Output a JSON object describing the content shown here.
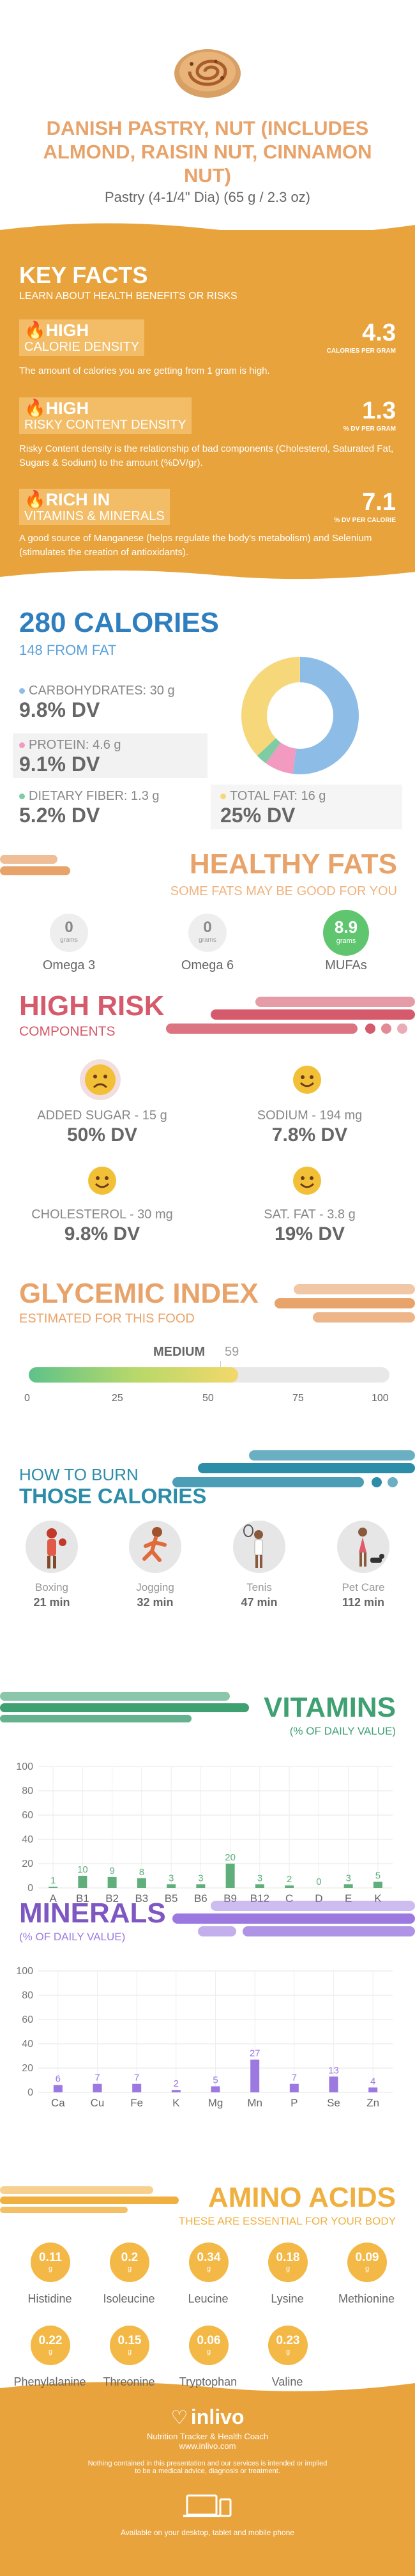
{
  "header": {
    "title": "DANISH PASTRY, NUT (INCLUDES ALMOND, RAISIN NUT, CINNAMON NUT)",
    "serving": "Pastry (4-1/4\" Dia) (65 g / 2.3 oz)"
  },
  "key_facts": {
    "title": "KEY FACTS",
    "subtitle": "LEARN ABOUT HEALTH BENEFITS OR RISKS",
    "items": [
      {
        "level": "HIGH",
        "name": "CALORIE DENSITY",
        "value": "4.3",
        "unit": "CALORIES PER GRAM",
        "desc": "The amount of calories you are getting from 1 gram is high."
      },
      {
        "level": "HIGH",
        "name": "RISKY CONTENT DENSITY",
        "value": "1.3",
        "unit": "% DV PER GRAM",
        "desc": "Risky Content density is the relationship of bad components (Cholesterol, Saturated Fat, Sugars & Sodium) to the amount (%DV/gr)."
      },
      {
        "level": "RICH  IN",
        "name": "VITAMINS & MINERALS",
        "value": "7.1",
        "unit": "% DV PER CALORIE",
        "desc": "A good source of Manganese (helps regulate the body's metabolism) and Selenium (stimulates the creation of antioxidants)."
      }
    ]
  },
  "calories": {
    "title": "280 CALORIES",
    "from_fat": "148 FROM FAT",
    "nutrients": [
      {
        "label": "CARBOHYDRATES: 30 g",
        "dv": "9.8% DV",
        "color": "#8dbde6"
      },
      {
        "label": "PROTEIN: 4.6 g",
        "dv": "9.1% DV",
        "color": "#f29ac0"
      },
      {
        "label": "DIETARY FIBER: 1.3 g",
        "dv": "5.2% DV",
        "color": "#7fcba4"
      },
      {
        "label": "TOTAL FAT: 16 g",
        "dv": "25% DV",
        "color": "#f6d77a"
      }
    ]
  },
  "healthy_fats": {
    "title": "HEALTHY FATS",
    "subtitle": "SOME FATS MAY BE GOOD FOR YOU",
    "unit": "grams",
    "items": [
      {
        "name": "Omega 3",
        "value": "0"
      },
      {
        "name": "Omega 6",
        "value": "0"
      },
      {
        "name": "MUFAs",
        "value": "8.9"
      }
    ]
  },
  "high_risk": {
    "title": "HIGH RISK",
    "subtitle": "COMPONENTS",
    "items": [
      {
        "label": "ADDED SUGAR - 15 g",
        "dv": "50% DV",
        "face": "sad"
      },
      {
        "label": "SODIUM - 194 mg",
        "dv": "7.8% DV",
        "face": "happy"
      },
      {
        "label": "CHOLESTEROL - 30 mg",
        "dv": "9.8% DV",
        "face": "happy"
      },
      {
        "label": "SAT. FAT - 3.8 g",
        "dv": "19% DV",
        "face": "happy"
      }
    ]
  },
  "glycemic": {
    "title": "GLYCEMIC INDEX",
    "subtitle": "ESTIMATED FOR THIS FOOD",
    "level": "MEDIUM",
    "value": "59",
    "ticks": [
      "0",
      "25",
      "50",
      "75",
      "100"
    ]
  },
  "burn": {
    "title1": "HOW TO BURN",
    "title2": "THOSE CALORIES",
    "items": [
      {
        "name": "Boxing",
        "time": "21 min"
      },
      {
        "name": "Jogging",
        "time": "32 min"
      },
      {
        "name": "Tenis",
        "time": "47 min"
      },
      {
        "name": "Pet Care",
        "time": "112 min"
      }
    ]
  },
  "chart_data": [
    {
      "type": "bar",
      "title": "VITAMINS",
      "subtitle": "(% OF DAILY VALUE)",
      "categories": [
        "A",
        "B1",
        "B2",
        "B3",
        "B5",
        "B6",
        "B9",
        "B12",
        "C",
        "D",
        "E",
        "K"
      ],
      "values": [
        1,
        10,
        9,
        8,
        3,
        3,
        20,
        3,
        2,
        0,
        3,
        5
      ],
      "ylim": [
        0,
        100
      ],
      "yticks": [
        "0",
        "20",
        "40",
        "60",
        "80",
        "100"
      ],
      "color": "#5fae7c"
    },
    {
      "type": "bar",
      "title": "MINERALS",
      "subtitle": "(% OF DAILY VALUE)",
      "categories": [
        "Ca",
        "Cu",
        "Fe",
        "K",
        "Mg",
        "Mn",
        "P",
        "Se",
        "Zn"
      ],
      "values": [
        6,
        7,
        7,
        2,
        5,
        27,
        7,
        13,
        4
      ],
      "ylim": [
        0,
        100
      ],
      "yticks": [
        "0",
        "20",
        "40",
        "60",
        "80",
        "100"
      ],
      "color": "#9b79e0"
    }
  ],
  "amino": {
    "title": "AMINO ACIDS",
    "subtitle": "THESE ARE ESSENTIAL FOR YOUR BODY",
    "unit": "g",
    "items": [
      {
        "name": "Histidine",
        "value": "0.11"
      },
      {
        "name": "Isoleucine",
        "value": "0.2"
      },
      {
        "name": "Leucine",
        "value": "0.34"
      },
      {
        "name": "Lysine",
        "value": "0.18"
      },
      {
        "name": "Methionine",
        "value": "0.09"
      },
      {
        "name": "Phenylalanine",
        "value": "0.22"
      },
      {
        "name": "Threonine",
        "value": "0.15"
      },
      {
        "name": "Tryptophan",
        "value": "0.06"
      },
      {
        "name": "Valine",
        "value": "0.23"
      }
    ]
  },
  "footer": {
    "brand": "inlivo",
    "tagline": "Nutrition Tracker & Health Coach",
    "url": "www.inlivo.com",
    "disclaimer1": "Nothing contained in this presentation and our services is intended or implied",
    "disclaimer2": "to be a medical advice, diagnosis or treatment.",
    "available": "Available on your desktop, tablet and mobile phone"
  }
}
